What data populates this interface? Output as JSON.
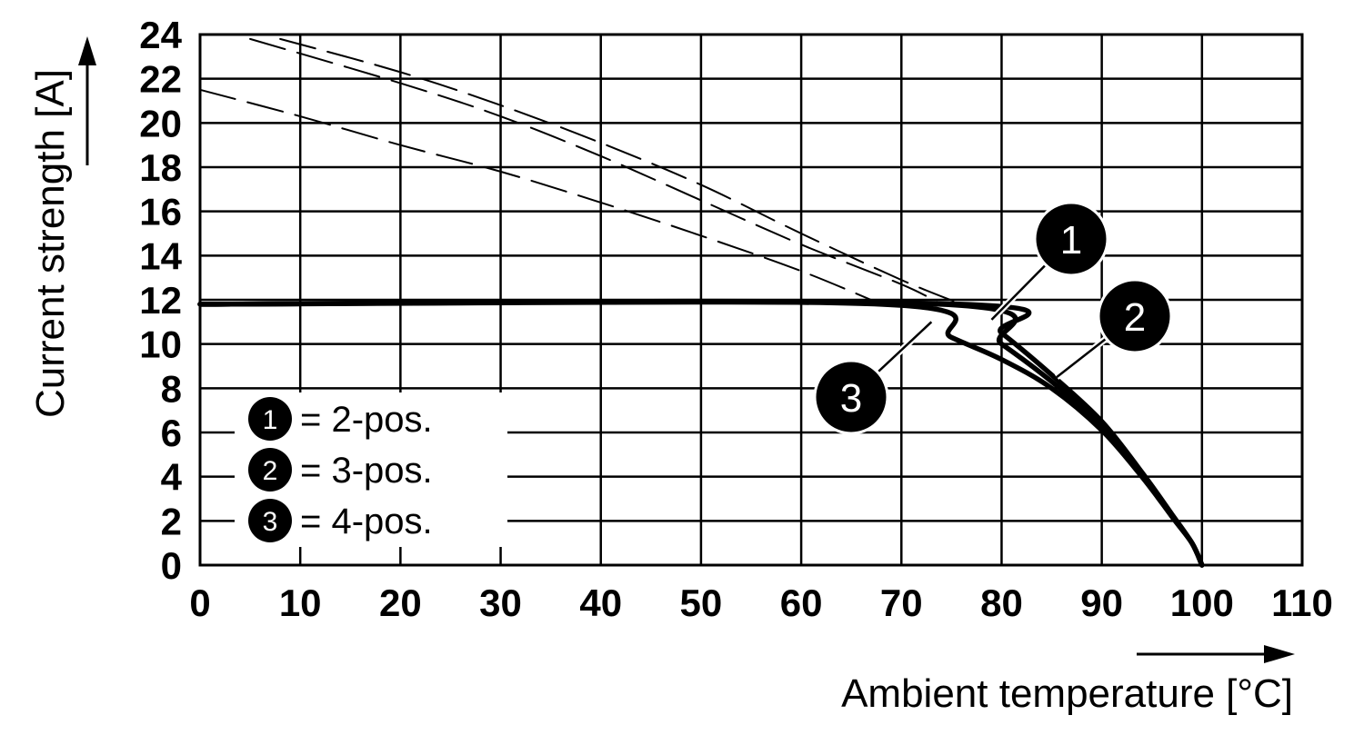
{
  "chart_data": {
    "type": "line",
    "xlabel": "Ambient temperature [°C]",
    "ylabel": "Current strength [A]",
    "xlim": [
      0,
      110
    ],
    "ylim": [
      0,
      24
    ],
    "x_ticks": [
      0,
      10,
      20,
      30,
      40,
      50,
      60,
      70,
      80,
      90,
      100,
      110
    ],
    "y_ticks": [
      0,
      2,
      4,
      6,
      8,
      10,
      12,
      14,
      16,
      18,
      20,
      22,
      24
    ],
    "grid": true,
    "legend_position": "bottom-left",
    "legend": [
      {
        "marker": "1",
        "label": "= 2-pos."
      },
      {
        "marker": "2",
        "label": "= 3-pos."
      },
      {
        "marker": "3",
        "label": "= 4-pos."
      }
    ],
    "series": [
      {
        "marker": "1",
        "style": "solid",
        "x": [
          0,
          76,
          80,
          85,
          90,
          94,
          97,
          99,
          100
        ],
        "y": [
          11.8,
          11.8,
          10.5,
          8.6,
          6.5,
          4.2,
          2.3,
          1.0,
          0
        ]
      },
      {
        "marker": "2",
        "style": "solid",
        "x": [
          0,
          74,
          80,
          85,
          90,
          94,
          97,
          99,
          100
        ],
        "y": [
          11.8,
          11.8,
          10.0,
          8.3,
          6.3,
          4.1,
          2.2,
          1.0,
          0
        ]
      },
      {
        "marker": "3",
        "style": "solid",
        "x": [
          0,
          68,
          75,
          80,
          85,
          90,
          94,
          97,
          99,
          100
        ],
        "y": [
          11.8,
          11.8,
          10.3,
          9.3,
          8.0,
          6.1,
          4.0,
          2.2,
          1.0,
          0
        ]
      },
      {
        "marker": "1",
        "style": "dashed",
        "x": [
          8,
          20,
          30,
          40,
          50,
          60,
          70,
          76
        ],
        "y": [
          23.8,
          22.3,
          20.8,
          19.1,
          17.2,
          15.0,
          12.9,
          11.8
        ]
      },
      {
        "marker": "2",
        "style": "dashed",
        "x": [
          5,
          20,
          30,
          40,
          50,
          60,
          70,
          74
        ],
        "y": [
          23.8,
          21.8,
          20.3,
          18.5,
          16.5,
          14.5,
          12.7,
          11.8
        ]
      },
      {
        "marker": "3",
        "style": "dashed",
        "x": [
          0,
          10,
          20,
          30,
          40,
          50,
          60,
          68
        ],
        "y": [
          21.5,
          20.3,
          19.0,
          17.8,
          16.4,
          14.9,
          13.3,
          11.8
        ]
      }
    ],
    "callouts": [
      {
        "marker": "1",
        "x": 79,
        "y": 11.1
      },
      {
        "marker": "2",
        "x": 85.5,
        "y": 8.5
      },
      {
        "marker": "3",
        "x": 73,
        "y": 11.0
      }
    ]
  }
}
